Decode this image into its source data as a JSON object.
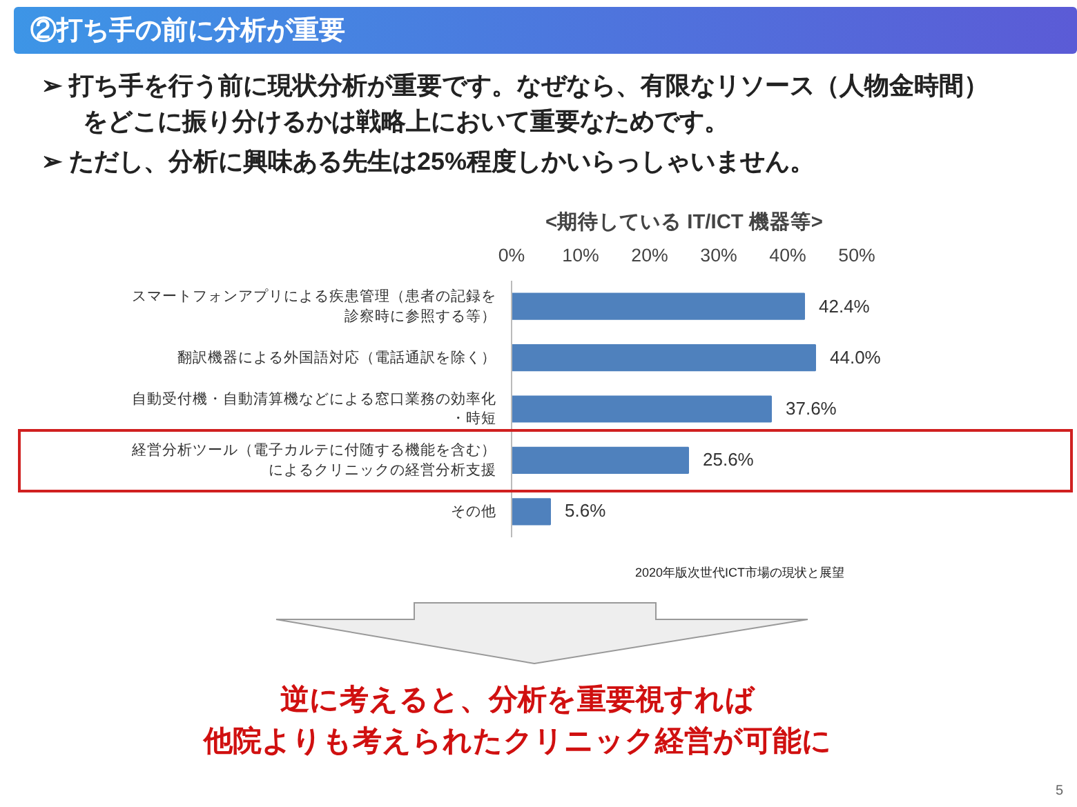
{
  "chart_data": {
    "type": "bar",
    "orientation": "horizontal",
    "title": "<期待している IT/ICT 機器等>",
    "categories": [
      "スマートフォンアプリによる疾患管理（患者の記録を診察時に参照する等）",
      "翻訳機器による外国語対応（電話通訳を除く）",
      "自動受付機・自動清算機などによる窓口業務の効率化・時短",
      "経営分析ツール（電子カルテに付随する機能を含む）によるクリニックの経営分析支援",
      "その他"
    ],
    "values": [
      42.4,
      44.0,
      37.6,
      25.6,
      5.6
    ],
    "value_labels": [
      "42.4%",
      "44.0%",
      "37.6%",
      "25.6%",
      "5.6%"
    ],
    "color": "#4f81bd",
    "xlim": [
      0,
      50
    ],
    "xticks": [
      {
        "value": 0,
        "label": "0%"
      },
      {
        "value": 10,
        "label": "10%"
      },
      {
        "value": 20,
        "label": "20%"
      },
      {
        "value": 30,
        "label": "30%"
      },
      {
        "value": 40,
        "label": "40%"
      },
      {
        "value": 50,
        "label": "50%"
      }
    ],
    "grid": false,
    "annotations": [
      "②打ち手の前に分析が重要",
      "➢ 打ち手を行う前に現状分析が重要です。なぜなら、有限なリソース（人物金時間）をどこに振り分けるかは戦略上において重要なためです。",
      "➢ ただし、分析に興味ある先生は25%程度しかいらっしゃいません。",
      "2020年版次世代ICT市場の現状と展望",
      "逆に考えると、分析を重要視すれば",
      "他院よりも考えられたクリニック経営が可能に",
      "5"
    ]
  }
}
